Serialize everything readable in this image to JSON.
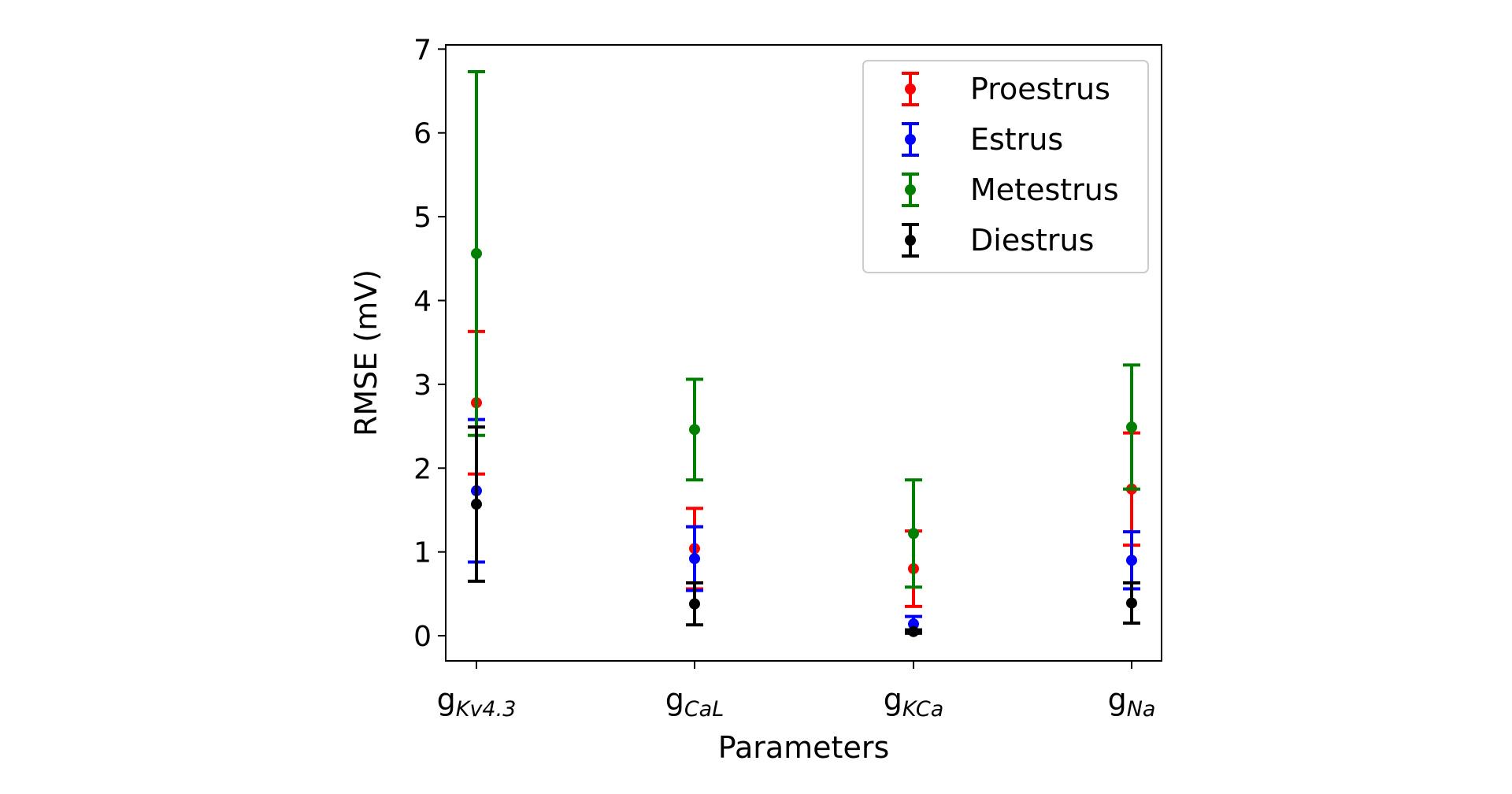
{
  "chart_data": {
    "type": "scatter",
    "title": "",
    "xlabel": "Parameters",
    "ylabel": "RMSE (mV)",
    "ylim": [
      -0.3,
      7.05
    ],
    "yticks": [
      0,
      1,
      2,
      3,
      4,
      5,
      6,
      7
    ],
    "categories": [
      {
        "main": "g",
        "sub": "Kv4.3"
      },
      {
        "main": "g",
        "sub": "CaL"
      },
      {
        "main": "g",
        "sub": "KCa"
      },
      {
        "main": "g",
        "sub": "Na"
      }
    ],
    "error_bars": true,
    "grid": false,
    "legend_position": "top-right",
    "series": [
      {
        "name": "Proestrus",
        "color": "#ff0000",
        "values": [
          2.78,
          1.04,
          0.8,
          1.75
        ],
        "errors": [
          0.85,
          0.48,
          0.45,
          0.67
        ]
      },
      {
        "name": "Estrus",
        "color": "#0000ff",
        "values": [
          1.73,
          0.92,
          0.14,
          0.9
        ],
        "errors": [
          0.85,
          0.38,
          0.09,
          0.34
        ]
      },
      {
        "name": "Metestrus",
        "color": "#008000",
        "values": [
          4.56,
          2.46,
          1.22,
          2.49
        ],
        "errors": [
          2.17,
          0.6,
          0.64,
          0.74
        ]
      },
      {
        "name": "Diestrus",
        "color": "#000000",
        "values": [
          1.57,
          0.38,
          0.05,
          0.39
        ],
        "errors": [
          0.92,
          0.25,
          0.02,
          0.24
        ]
      }
    ]
  }
}
